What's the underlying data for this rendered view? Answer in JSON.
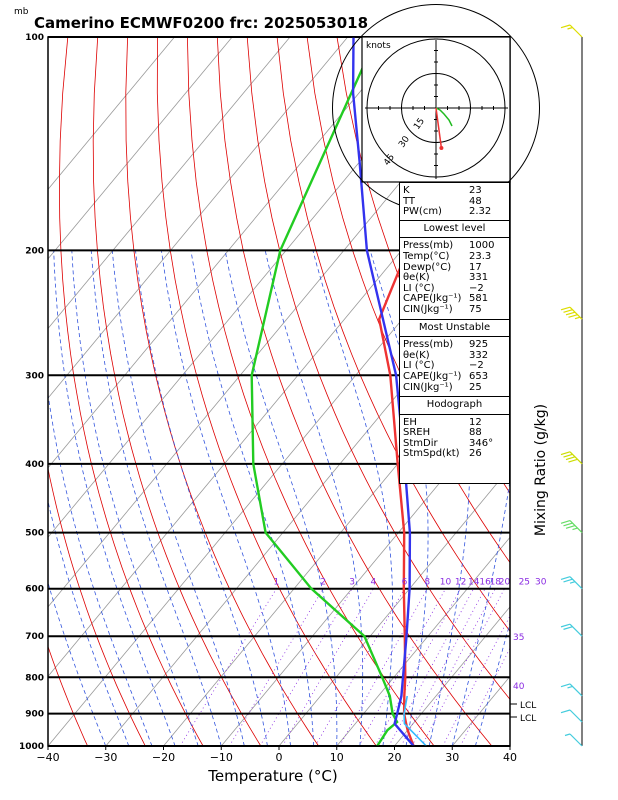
{
  "title": "Camerino  ECMWF0200  frc: 2025053018",
  "ylabel_unit": "mb",
  "xlabel": "Temperature (°C)",
  "right_label": "Mixing Ratio (g/kg)",
  "hodograph": {
    "units": "knots",
    "ring_labels": [
      "15",
      "30",
      "45"
    ],
    "wind_profile": [
      [
        0,
        0
      ],
      [
        4,
        -2
      ],
      [
        8,
        -6
      ],
      [
        13,
        -12
      ],
      [
        16,
        -18
      ]
    ],
    "storm_motion": [
      12,
      -25
    ]
  },
  "indices_top": [
    {
      "label": "K",
      "value": "23"
    },
    {
      "label": "TT",
      "value": "48"
    },
    {
      "label": "PW(cm)",
      "value": "2.32"
    }
  ],
  "lowest_level": {
    "header": "Lowest level",
    "rows": [
      {
        "label": "Press(mb)",
        "value": "1000"
      },
      {
        "label": "Temp(°C)",
        "value": "23.3"
      },
      {
        "label": "Dewp(°C)",
        "value": "17"
      },
      {
        "label": "θe(K)",
        "value": "331"
      },
      {
        "label": "LI (°C)",
        "value": "−2"
      },
      {
        "label": "CAPE(Jkg⁻¹)",
        "value": "581"
      },
      {
        "label": "CIN(Jkg⁻¹)",
        "value": "75"
      }
    ]
  },
  "most_unstable": {
    "header": "Most Unstable",
    "rows": [
      {
        "label": "Press(mb)",
        "value": "925"
      },
      {
        "label": "θe(K)",
        "value": "332"
      },
      {
        "label": "LI (°C)",
        "value": "−2"
      },
      {
        "label": "CAPE(Jkg⁻¹)",
        "value": "653"
      },
      {
        "label": "CIN(Jkg⁻¹)",
        "value": "25"
      }
    ]
  },
  "hodograph_table": {
    "header": "Hodograph",
    "rows": [
      {
        "label": "EH",
        "value": "12"
      },
      {
        "label": "SREH",
        "value": "88"
      },
      {
        "label": "StmDir",
        "value": "346°"
      },
      {
        "label": "StmSpd(kt)",
        "value": "26"
      }
    ]
  },
  "lcl_labels": [
    "LCL",
    "LCL"
  ],
  "colors": {
    "temperature": "#ee3333",
    "dewpoint": "#22cc22",
    "parcel": "#3333ee",
    "virtual": "#33bbff",
    "dry_adiabat": "#dd0000",
    "moist_adiabat": "#3355dd",
    "mixing_ratio": "#8a2be2",
    "isotherm": "#999999"
  },
  "chart_data": {
    "type": "line",
    "title": "Camerino  ECMWF0200  frc: 2025053018",
    "xlabel": "Temperature (°C)",
    "ylabel": "mb",
    "xlim": [
      -40,
      40
    ],
    "ylim": [
      1000,
      100
    ],
    "y_scale": "log",
    "x_ticks": [
      -40,
      -30,
      -20,
      -10,
      0,
      10,
      20,
      30,
      40
    ],
    "y_ticks": [
      1000,
      900,
      800,
      700,
      600,
      500,
      400,
      300,
      200,
      100
    ],
    "mixing_ratio_labels": [
      "1",
      "2",
      "3",
      "4",
      "6",
      "8",
      "10",
      "12",
      "14",
      "16",
      "18",
      "20",
      "25",
      "30"
    ],
    "mixing_ratio_values": [
      1,
      2,
      3,
      4,
      6,
      8,
      10,
      12,
      14,
      16,
      18,
      20,
      25,
      30
    ],
    "side_labels": [
      "35",
      "40"
    ],
    "series": [
      {
        "key": "temperature",
        "points": [
          [
            1000,
            23.3
          ],
          [
            950,
            20
          ],
          [
            925,
            18.5
          ],
          [
            900,
            17
          ],
          [
            850,
            14.5
          ],
          [
            800,
            12
          ],
          [
            700,
            6
          ],
          [
            600,
            -1
          ],
          [
            500,
            -9
          ],
          [
            400,
            -20
          ],
          [
            300,
            -34
          ],
          [
            250,
            -44
          ],
          [
            200,
            -49
          ],
          [
            150,
            -52
          ],
          [
            100,
            -56
          ]
        ]
      },
      {
        "key": "dewpoint",
        "points": [
          [
            1000,
            17
          ],
          [
            950,
            16.5
          ],
          [
            925,
            17
          ],
          [
            900,
            15
          ],
          [
            850,
            12
          ],
          [
            800,
            8
          ],
          [
            700,
            -1
          ],
          [
            600,
            -17
          ],
          [
            500,
            -33
          ],
          [
            400,
            -45
          ],
          [
            300,
            -58
          ],
          [
            200,
            -71
          ],
          [
            100,
            -85
          ]
        ]
      },
      {
        "key": "parcel",
        "points": [
          [
            1000,
            23.3
          ],
          [
            930,
            16.8
          ],
          [
            900,
            15.8
          ],
          [
            850,
            14
          ],
          [
            800,
            11.6
          ],
          [
            700,
            6.3
          ],
          [
            600,
            0
          ],
          [
            500,
            -8
          ],
          [
            400,
            -18.8
          ],
          [
            300,
            -33
          ],
          [
            200,
            -56
          ],
          [
            150,
            -70
          ],
          [
            120,
            -81
          ],
          [
            100,
            -89
          ]
        ]
      },
      {
        "key": "virtual",
        "points": [
          [
            1000,
            25.5
          ],
          [
            930,
            18.5
          ],
          [
            900,
            17
          ],
          [
            850,
            15
          ]
        ]
      }
    ],
    "wind_barbs": [
      {
        "p": 1000,
        "speed_kt": 8
      },
      {
        "p": 925,
        "speed_kt": 10
      },
      {
        "p": 850,
        "speed_kt": 15
      },
      {
        "p": 700,
        "speed_kt": 20
      },
      {
        "p": 600,
        "speed_kt": 25
      },
      {
        "p": 500,
        "speed_kt": 35
      },
      {
        "p": 400,
        "speed_kt": 40
      },
      {
        "p": 250,
        "speed_kt": 45
      },
      {
        "p": 100,
        "speed_kt": 15
      }
    ]
  }
}
